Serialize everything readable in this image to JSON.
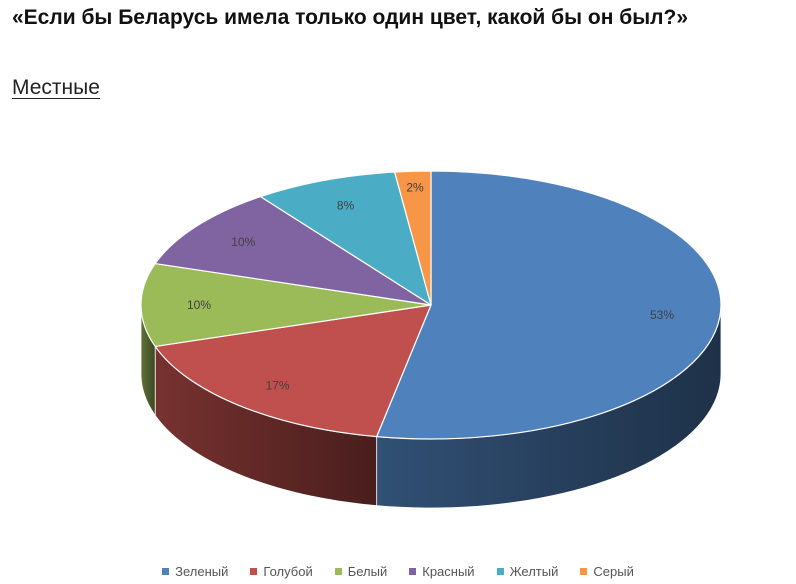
{
  "title": "«Если бы Беларусь имела только один цвет, какой бы он был?»",
  "subtitle": "Местные",
  "chart_data": {
    "type": "pie",
    "style": "3d",
    "title": "",
    "legend_position": "bottom",
    "start": "12 o'clock, clockwise",
    "slices": [
      {
        "label": "Зеленый",
        "value": 53,
        "display": "53%",
        "color": "#4F81BD"
      },
      {
        "label": "Голубой",
        "value": 17,
        "display": "17%",
        "color": "#C0504D"
      },
      {
        "label": "Белый",
        "value": 10,
        "display": "10%",
        "color": "#9BBB59"
      },
      {
        "label": "Красный",
        "value": 10,
        "display": "10%",
        "color": "#8064A2"
      },
      {
        "label": "Желтый",
        "value": 8,
        "display": "8%",
        "color": "#4BACC6"
      },
      {
        "label": "Серый",
        "value": 2,
        "display": "2%",
        "color": "#F79646"
      }
    ]
  }
}
